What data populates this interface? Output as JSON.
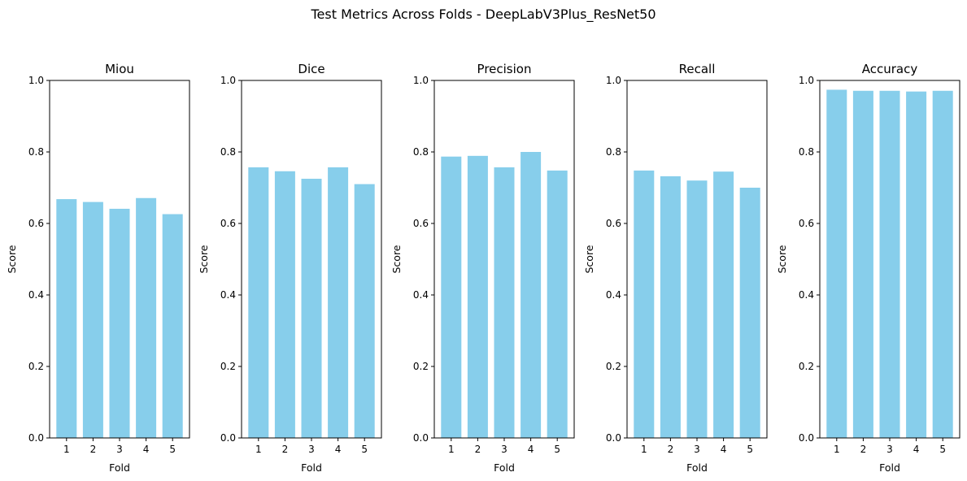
{
  "figure": {
    "title": "Test Metrics Across Folds - DeepLabV3Plus_ResNet50"
  },
  "chart_data": [
    {
      "type": "bar",
      "title": "Miou",
      "xlabel": "Fold",
      "ylabel": "Score",
      "categories": [
        "1",
        "2",
        "3",
        "4",
        "5"
      ],
      "values": [
        0.668,
        0.66,
        0.641,
        0.671,
        0.626
      ],
      "ylim": [
        0,
        1
      ],
      "yticks": [
        "0.0",
        "0.2",
        "0.4",
        "0.6",
        "0.8",
        "1.0"
      ],
      "color": "#87ceeb",
      "grid": false
    },
    {
      "type": "bar",
      "title": "Dice",
      "xlabel": "Fold",
      "ylabel": "Score",
      "categories": [
        "1",
        "2",
        "3",
        "4",
        "5"
      ],
      "values": [
        0.757,
        0.746,
        0.725,
        0.757,
        0.71
      ],
      "ylim": [
        0,
        1
      ],
      "yticks": [
        "0.0",
        "0.2",
        "0.4",
        "0.6",
        "0.8",
        "1.0"
      ],
      "color": "#87ceeb",
      "grid": false
    },
    {
      "type": "bar",
      "title": "Precision",
      "xlabel": "Fold",
      "ylabel": "Score",
      "categories": [
        "1",
        "2",
        "3",
        "4",
        "5"
      ],
      "values": [
        0.787,
        0.789,
        0.757,
        0.8,
        0.748
      ],
      "ylim": [
        0,
        1
      ],
      "yticks": [
        "0.0",
        "0.2",
        "0.4",
        "0.6",
        "0.8",
        "1.0"
      ],
      "color": "#87ceeb",
      "grid": false
    },
    {
      "type": "bar",
      "title": "Recall",
      "xlabel": "Fold",
      "ylabel": "Score",
      "categories": [
        "1",
        "2",
        "3",
        "4",
        "5"
      ],
      "values": [
        0.748,
        0.732,
        0.72,
        0.745,
        0.7
      ],
      "ylim": [
        0,
        1
      ],
      "yticks": [
        "0.0",
        "0.2",
        "0.4",
        "0.6",
        "0.8",
        "1.0"
      ],
      "color": "#87ceeb",
      "grid": false
    },
    {
      "type": "bar",
      "title": "Accuracy",
      "xlabel": "Fold",
      "ylabel": "Score",
      "categories": [
        "1",
        "2",
        "3",
        "4",
        "5"
      ],
      "values": [
        0.974,
        0.971,
        0.971,
        0.969,
        0.971
      ],
      "ylim": [
        0,
        1
      ],
      "yticks": [
        "0.0",
        "0.2",
        "0.4",
        "0.6",
        "0.8",
        "1.0"
      ],
      "color": "#87ceeb",
      "grid": false
    }
  ]
}
